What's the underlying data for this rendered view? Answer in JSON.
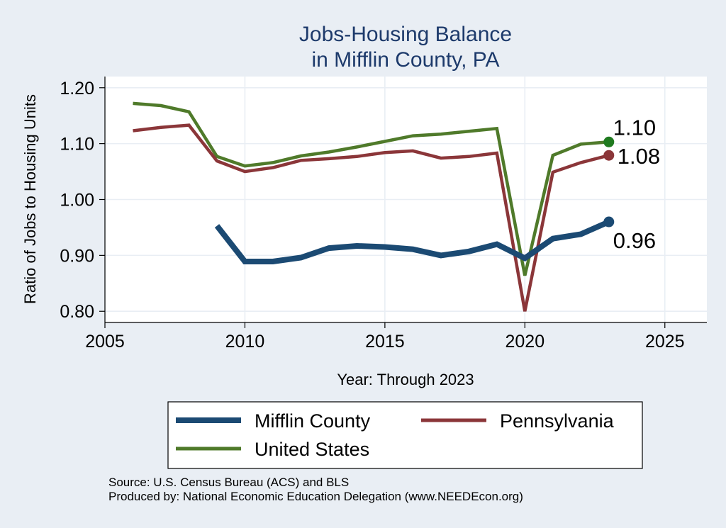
{
  "chart_data": {
    "type": "line",
    "title": "Jobs-Housing Balance",
    "subtitle": "in Mifflin County, PA",
    "xlabel": "Year: Through 2023",
    "ylabel": "Ratio of Jobs to Housing Units",
    "xlim": [
      2005,
      2026.5
    ],
    "ylim": [
      0.78,
      1.22
    ],
    "xticks": [
      2005,
      2010,
      2015,
      2020,
      2025
    ],
    "yticks": [
      0.8,
      0.9,
      1.0,
      1.1,
      1.2
    ],
    "ytick_labels": [
      "0.80",
      "0.90",
      "1.00",
      "1.10",
      "1.20"
    ],
    "grid": true,
    "series": [
      {
        "name": "Mifflin County",
        "color": "#1b4a73",
        "x": [
          2009,
          2010,
          2011,
          2012,
          2013,
          2014,
          2015,
          2016,
          2017,
          2018,
          2019,
          2020,
          2021,
          2022,
          2023
        ],
        "values": [
          0.953,
          0.889,
          0.889,
          0.896,
          0.913,
          0.917,
          0.915,
          0.911,
          0.9,
          0.907,
          0.92,
          0.895,
          0.93,
          0.938,
          0.96
        ],
        "end_label": "0.96"
      },
      {
        "name": "Pennsylvania",
        "color": "#8b3639",
        "x": [
          2006,
          2007,
          2008,
          2009,
          2010,
          2011,
          2012,
          2013,
          2014,
          2015,
          2016,
          2017,
          2018,
          2019,
          2020,
          2021,
          2022,
          2023
        ],
        "values": [
          1.123,
          1.129,
          1.133,
          1.069,
          1.05,
          1.057,
          1.07,
          1.073,
          1.077,
          1.084,
          1.087,
          1.074,
          1.077,
          1.083,
          0.8,
          1.049,
          1.066,
          1.079
        ],
        "end_label": "1.08"
      },
      {
        "name": "United States",
        "color": "#4f7a2a",
        "x": [
          2006,
          2007,
          2008,
          2009,
          2010,
          2011,
          2012,
          2013,
          2014,
          2015,
          2016,
          2017,
          2018,
          2019,
          2020,
          2021,
          2022,
          2023
        ],
        "values": [
          1.172,
          1.168,
          1.157,
          1.077,
          1.06,
          1.066,
          1.078,
          1.085,
          1.094,
          1.104,
          1.114,
          1.117,
          1.122,
          1.127,
          0.864,
          1.079,
          1.099,
          1.103
        ],
        "end_label": "1.10"
      }
    ],
    "end_marker_colors": {
      "Mifflin County": "#1b4a73",
      "Pennsylvania": "#8b3639",
      "United States": "#1f7a1f"
    },
    "legend": [
      "Mifflin County",
      "Pennsylvania",
      "United States"
    ],
    "legend_position": "bottom"
  },
  "source": {
    "line1": "Source: U.S. Census Bureau (ACS) and BLS",
    "line2": "Produced by: National Economic Education Delegation (www.NEEDEcon.org)"
  }
}
